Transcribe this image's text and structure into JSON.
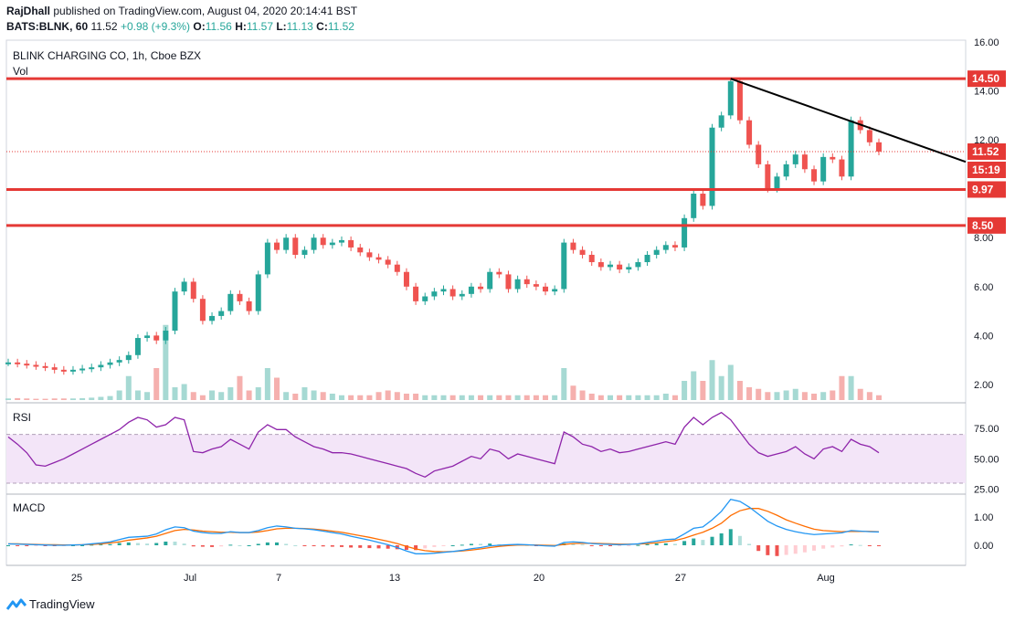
{
  "header": {
    "author": "RajDhall",
    "published": "published on TradingView.com, August 04, 2020 20:14:41 BST",
    "symbol": "BATS:BLNK, 60",
    "last": "11.52",
    "change": "+0.98 (+9.3%)",
    "o_label": "O:",
    "o": "11.56",
    "h_label": "H:",
    "h": "11.57",
    "l_label": "L:",
    "l": "11.13",
    "c_label": "C:",
    "c": "11.52"
  },
  "chart_title": "BLINK CHARGING CO, 1h, Cboe BZX",
  "vol_label": "Vol",
  "rsi_label": "RSI",
  "macd_label": "MACD",
  "footer_logo": "TradingView",
  "colors": {
    "up": "#26a69a",
    "down": "#ef5350",
    "line_red": "#e53935",
    "rsi": "#8e24aa",
    "rsi_band": "#f3e5f8",
    "macd": "#2196f3",
    "signal": "#ff6d00",
    "trendline": "#000000"
  },
  "chart_data": {
    "type": "candlestick",
    "x_tick_labels": [
      "25",
      "Jul",
      "7",
      "13",
      "20",
      "27",
      "Aug"
    ],
    "price_axis": {
      "ticks": [
        "16.00",
        "14.00",
        "12.00",
        "8.00",
        "6.00",
        "4.00",
        "2.00"
      ],
      "range": [
        1.0,
        16.0
      ]
    },
    "horizontal_levels": [
      {
        "label": "14.50",
        "value": 14.5
      },
      {
        "label": "9.97",
        "value": 9.97
      },
      {
        "label": "8.50",
        "value": 8.5
      }
    ],
    "last_price": {
      "label": "11.52",
      "value": 11.52,
      "countdown": "15:19"
    },
    "close_path": [
      2.9,
      2.85,
      2.8,
      2.75,
      2.7,
      2.6,
      2.55,
      2.6,
      2.65,
      2.7,
      2.8,
      2.9,
      3.0,
      3.2,
      3.9,
      4.0,
      3.8,
      4.2,
      5.8,
      6.2,
      5.5,
      4.6,
      4.8,
      5.0,
      5.7,
      5.4,
      5.0,
      6.5,
      7.8,
      7.5,
      8.0,
      7.3,
      7.5,
      8.0,
      7.7,
      7.8,
      7.9,
      7.6,
      7.4,
      7.2,
      7.1,
      6.9,
      6.6,
      6.0,
      5.4,
      5.6,
      5.8,
      5.9,
      5.6,
      5.7,
      6.0,
      5.9,
      6.6,
      6.5,
      5.9,
      6.3,
      6.1,
      6.0,
      5.8,
      5.9,
      7.8,
      7.5,
      7.3,
      7.0,
      6.8,
      6.9,
      6.7,
      6.8,
      7.0,
      7.3,
      7.5,
      7.7,
      7.6,
      8.8,
      9.8,
      9.3,
      12.5,
      13.0,
      14.4,
      12.8,
      11.8,
      11.0,
      10.0,
      10.5,
      11.0,
      11.4,
      10.8,
      10.3,
      11.3,
      11.2,
      10.5,
      12.8,
      12.4,
      11.9,
      11.52
    ],
    "volume": [
      0.1,
      0.12,
      0.1,
      0.08,
      0.08,
      0.1,
      0.1,
      0.1,
      0.12,
      0.15,
      0.2,
      0.25,
      0.6,
      1.5,
      0.6,
      0.5,
      2.0,
      4.7,
      0.8,
      1.0,
      0.5,
      0.3,
      0.6,
      0.5,
      0.8,
      1.5,
      0.6,
      0.8,
      2.0,
      1.4,
      0.5,
      0.4,
      0.8,
      0.6,
      0.5,
      0.4,
      0.3,
      0.3,
      0.3,
      0.3,
      0.5,
      0.6,
      0.5,
      0.4,
      0.4,
      0.3,
      0.3,
      0.3,
      0.3,
      0.3,
      0.3,
      0.3,
      0.3,
      0.3,
      0.3,
      0.3,
      0.3,
      0.3,
      0.3,
      0.3,
      2.0,
      0.9,
      0.6,
      0.4,
      0.3,
      0.3,
      0.3,
      0.3,
      0.3,
      0.3,
      0.3,
      0.4,
      0.3,
      1.2,
      1.8,
      1.2,
      2.5,
      1.5,
      2.2,
      1.2,
      0.8,
      0.7,
      0.5,
      0.5,
      0.6,
      0.7,
      0.5,
      0.4,
      0.5,
      0.6,
      1.5,
      1.5,
      0.7,
      0.5,
      0.3
    ],
    "volume_range": [
      0,
      6
    ],
    "rsi": {
      "ticks": [
        "75.00",
        "50.00",
        "25.00"
      ],
      "range": [
        20,
        95
      ],
      "band": [
        30,
        70
      ],
      "values": [
        68,
        62,
        55,
        45,
        44,
        47,
        50,
        54,
        58,
        62,
        66,
        70,
        74,
        80,
        84,
        82,
        76,
        78,
        84,
        82,
        56,
        55,
        58,
        60,
        66,
        62,
        58,
        72,
        78,
        74,
        74,
        68,
        64,
        60,
        58,
        55,
        55,
        54,
        52,
        50,
        48,
        46,
        44,
        42,
        38,
        35,
        40,
        42,
        44,
        48,
        52,
        50,
        58,
        56,
        50,
        54,
        52,
        50,
        48,
        46,
        72,
        68,
        62,
        60,
        56,
        58,
        55,
        56,
        58,
        60,
        62,
        64,
        62,
        76,
        84,
        78,
        84,
        88,
        82,
        72,
        62,
        55,
        52,
        54,
        56,
        60,
        54,
        50,
        58,
        60,
        56,
        66,
        62,
        60,
        55
      ]
    },
    "macd": {
      "ticks": [
        "1.00",
        "0.00"
      ],
      "range": [
        -0.5,
        1.8
      ],
      "macd_line": [
        0.05,
        0.04,
        0.03,
        0.02,
        0.01,
        0.0,
        0.0,
        0.01,
        0.02,
        0.05,
        0.08,
        0.12,
        0.2,
        0.28,
        0.3,
        0.32,
        0.4,
        0.55,
        0.65,
        0.62,
        0.5,
        0.45,
        0.42,
        0.42,
        0.48,
        0.45,
        0.45,
        0.52,
        0.62,
        0.68,
        0.65,
        0.6,
        0.58,
        0.55,
        0.5,
        0.45,
        0.4,
        0.32,
        0.25,
        0.18,
        0.1,
        0.02,
        -0.08,
        -0.2,
        -0.3,
        -0.3,
        -0.28,
        -0.25,
        -0.22,
        -0.18,
        -0.12,
        -0.08,
        -0.02,
        0.0,
        0.02,
        0.03,
        0.02,
        0.0,
        -0.02,
        -0.03,
        0.1,
        0.12,
        0.1,
        0.06,
        0.04,
        0.03,
        0.02,
        0.03,
        0.05,
        0.1,
        0.15,
        0.2,
        0.22,
        0.4,
        0.6,
        0.65,
        0.9,
        1.2,
        1.62,
        1.55,
        1.35,
        1.1,
        0.85,
        0.68,
        0.56,
        0.48,
        0.42,
        0.38,
        0.4,
        0.42,
        0.44,
        0.52,
        0.5,
        0.48,
        0.47
      ],
      "signal_line": [
        0.05,
        0.05,
        0.04,
        0.03,
        0.02,
        0.02,
        0.01,
        0.01,
        0.02,
        0.03,
        0.05,
        0.08,
        0.12,
        0.18,
        0.22,
        0.26,
        0.32,
        0.42,
        0.52,
        0.56,
        0.54,
        0.5,
        0.48,
        0.46,
        0.46,
        0.45,
        0.45,
        0.47,
        0.52,
        0.58,
        0.6,
        0.6,
        0.59,
        0.57,
        0.54,
        0.5,
        0.46,
        0.4,
        0.34,
        0.28,
        0.21,
        0.14,
        0.06,
        -0.04,
        -0.13,
        -0.19,
        -0.22,
        -0.23,
        -0.22,
        -0.2,
        -0.17,
        -0.13,
        -0.08,
        -0.04,
        -0.01,
        0.01,
        0.01,
        0.01,
        0.0,
        -0.01,
        0.03,
        0.06,
        0.07,
        0.07,
        0.06,
        0.05,
        0.04,
        0.04,
        0.04,
        0.06,
        0.09,
        0.13,
        0.17,
        0.25,
        0.36,
        0.46,
        0.6,
        0.78,
        1.05,
        1.22,
        1.3,
        1.3,
        1.2,
        1.06,
        0.9,
        0.78,
        0.67,
        0.57,
        0.52,
        0.5,
        0.48,
        0.49,
        0.49,
        0.49,
        0.48
      ]
    }
  }
}
